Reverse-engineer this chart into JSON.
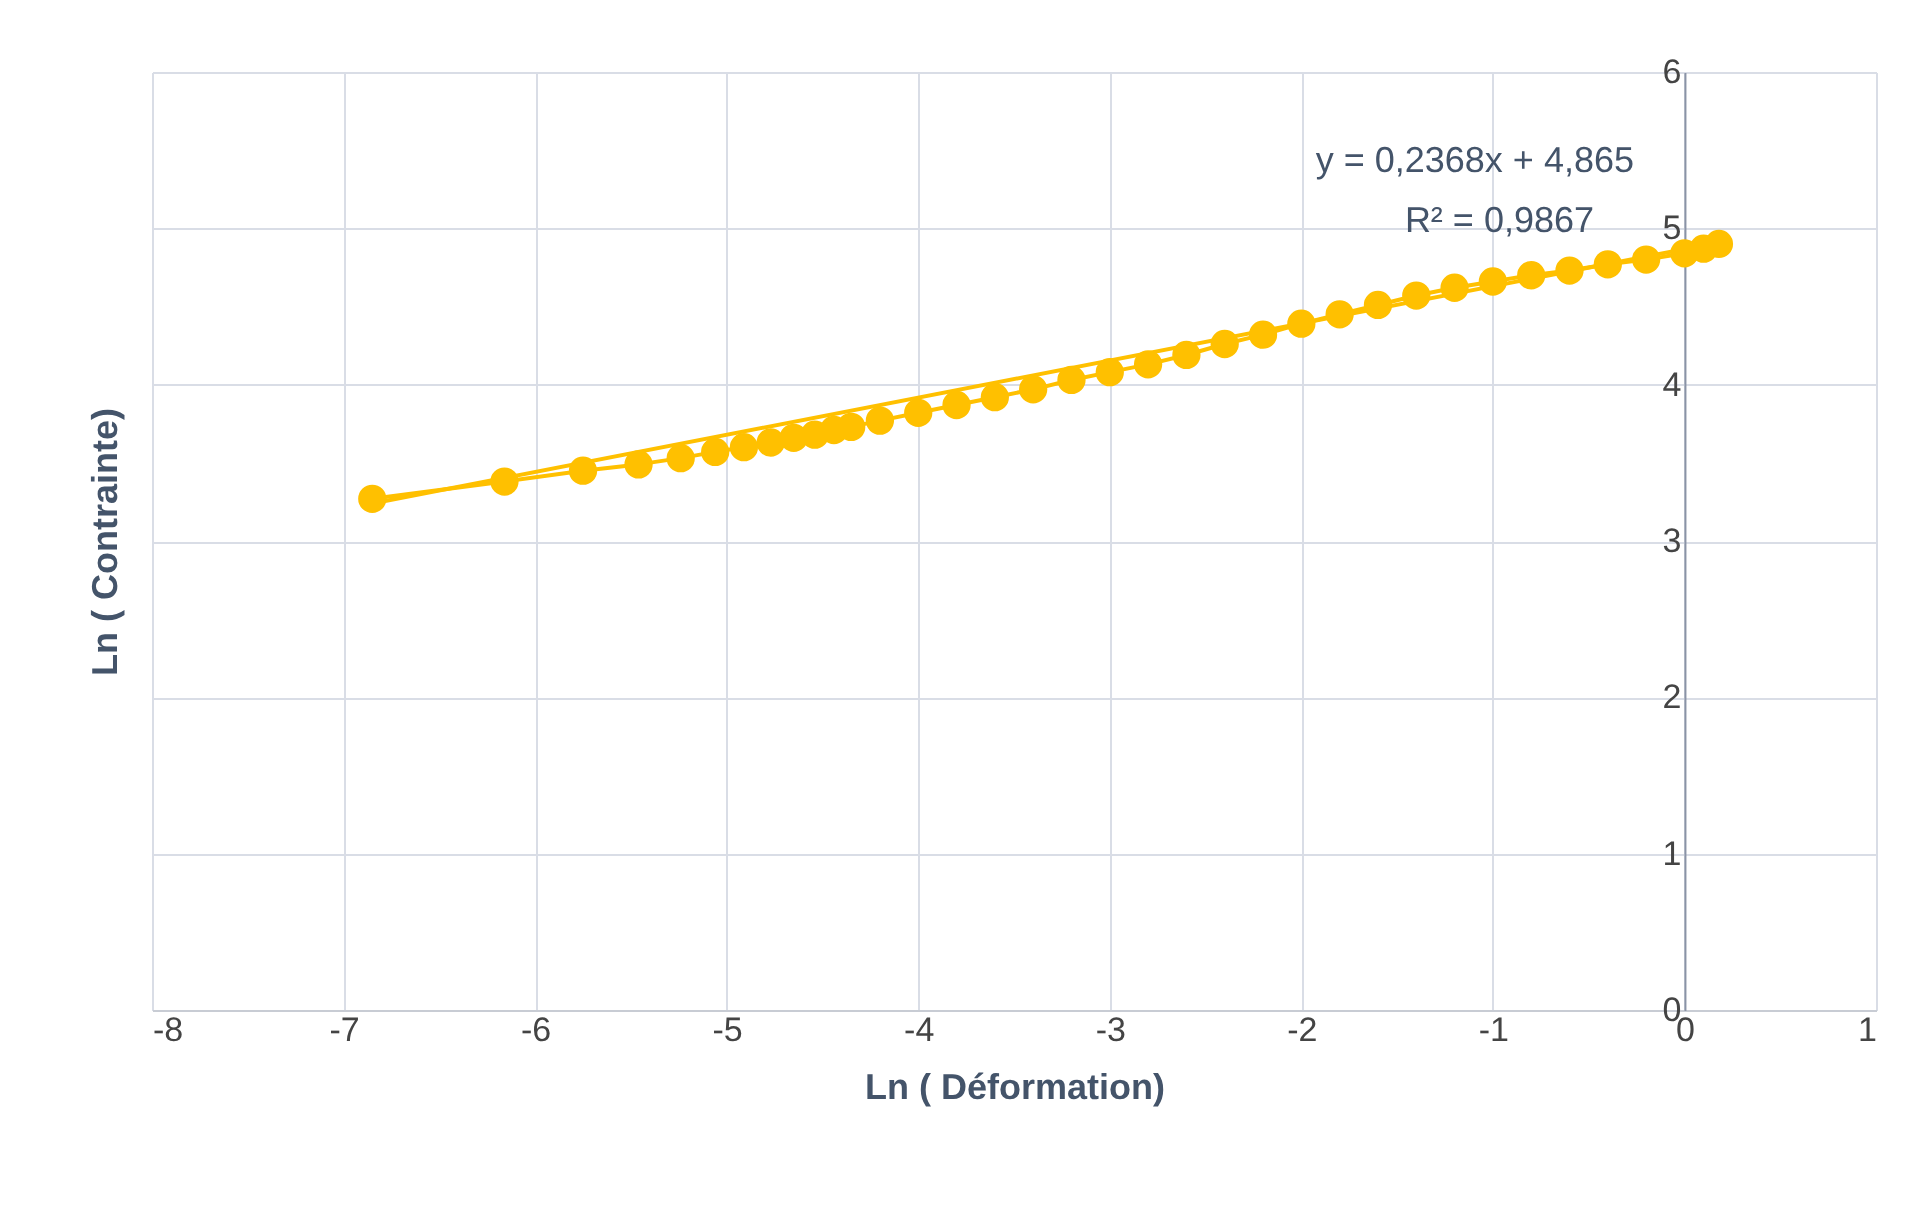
{
  "chart_data": {
    "type": "line",
    "xlabel": "Ln ( Déformation)",
    "ylabel": "Ln ( Contrainte)",
    "xlim": [
      -8,
      1
    ],
    "xticks": [
      -8,
      -7,
      -6,
      -5,
      -4,
      -3,
      -2,
      -1,
      0,
      1
    ],
    "ylim": [
      0,
      6
    ],
    "yticks": [
      0,
      1,
      2,
      3,
      4,
      5,
      6
    ],
    "grid": true,
    "annotations": [
      "y = 0,2368x + 4,865",
      "R² = 0,9867"
    ],
    "series": [
      {
        "marker": "circle",
        "color": "#ffc000",
        "x": [
          -6.85,
          -6.16,
          -5.75,
          -5.46,
          -5.24,
          -5.06,
          -4.91,
          -4.77,
          -4.65,
          -4.54,
          -4.44,
          -4.35,
          -4.2,
          -4.0,
          -3.8,
          -3.6,
          -3.4,
          -3.2,
          -3.0,
          -2.8,
          -2.6,
          -2.4,
          -2.2,
          -2.0,
          -1.8,
          -1.6,
          -1.4,
          -1.2,
          -1.0,
          -0.8,
          -0.6,
          -0.4,
          -0.2,
          0,
          0.1,
          0.18
        ],
        "values": [
          3.27,
          3.38,
          3.45,
          3.49,
          3.53,
          3.57,
          3.6,
          3.63,
          3.66,
          3.68,
          3.71,
          3.73,
          3.77,
          3.82,
          3.87,
          3.92,
          3.97,
          4.03,
          4.08,
          4.13,
          4.19,
          4.26,
          4.32,
          4.39,
          4.45,
          4.51,
          4.57,
          4.62,
          4.66,
          4.7,
          4.73,
          4.77,
          4.8,
          4.84,
          4.87,
          4.9
        ]
      },
      {
        "color": "#ffc000",
        "x": [
          -6.85,
          0.18
        ],
        "values": [
          3.24,
          4.91
        ]
      }
    ]
  }
}
